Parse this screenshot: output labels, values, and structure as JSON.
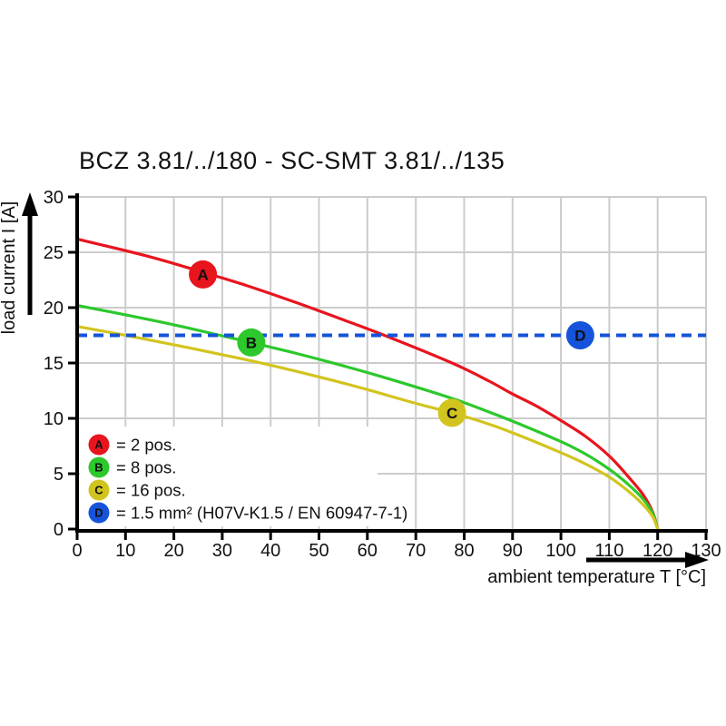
{
  "chart_data": {
    "type": "line",
    "title": "BCZ 3.81/../180 - SC-SMT 3.81/../135",
    "xlabel": "ambient temperature T [°C]",
    "ylabel": "load current I [A]",
    "xlim": [
      0,
      130
    ],
    "ylim": [
      0,
      30
    ],
    "x_ticks": [
      0,
      10,
      20,
      30,
      40,
      50,
      60,
      70,
      80,
      90,
      100,
      110,
      120,
      130
    ],
    "y_ticks": [
      0,
      5,
      10,
      15,
      20,
      25,
      30
    ],
    "grid": true,
    "legend_position": "bottom-left",
    "colors": {
      "red": "#e8141e",
      "green": "#2cc82c",
      "yellow": "#d2c41e",
      "blue": "#1553db",
      "grid": "#cccccc",
      "axis": "#000000",
      "marker_letter": "#ffffff"
    },
    "series": [
      {
        "letter": "A",
        "name": "2 pos.",
        "color_key": "red",
        "line_style": "solid",
        "marker_at": [
          26,
          23
        ],
        "points": [
          [
            0,
            26.2
          ],
          [
            15,
            24.6
          ],
          [
            26,
            23.2
          ],
          [
            35,
            22.0
          ],
          [
            45,
            20.5
          ],
          [
            55,
            18.9
          ],
          [
            63.5,
            17.5
          ],
          [
            77.5,
            15.0
          ],
          [
            85,
            13.4
          ],
          [
            90,
            12.2
          ],
          [
            95,
            11.1
          ],
          [
            100,
            9.8
          ],
          [
            105,
            8.4
          ],
          [
            110,
            6.6
          ],
          [
            114,
            4.7
          ],
          [
            117,
            3.1
          ],
          [
            119,
            1.5
          ],
          [
            120,
            0
          ]
        ]
      },
      {
        "letter": "B",
        "name": "8 pos.",
        "color_key": "green",
        "line_style": "solid",
        "marker_at": [
          36,
          16.85
        ],
        "points": [
          [
            0,
            20.2
          ],
          [
            10,
            19.35
          ],
          [
            20,
            18.45
          ],
          [
            29.5,
            17.5
          ],
          [
            36,
            16.85
          ],
          [
            45,
            15.9
          ],
          [
            55,
            14.75
          ],
          [
            65,
            13.5
          ],
          [
            77.5,
            11.8
          ],
          [
            85,
            10.6
          ],
          [
            90,
            9.75
          ],
          [
            100,
            7.9
          ],
          [
            105,
            6.8
          ],
          [
            110,
            5.4
          ],
          [
            114,
            4.0
          ],
          [
            117,
            2.7
          ],
          [
            119,
            1.4
          ],
          [
            120,
            0
          ]
        ]
      },
      {
        "letter": "C",
        "name": "16 pos.",
        "color_key": "yellow",
        "line_style": "solid",
        "marker_at": [
          77.5,
          10.5
        ],
        "points": [
          [
            0,
            18.3
          ],
          [
            10,
            17.5
          ],
          [
            20,
            16.65
          ],
          [
            30,
            15.75
          ],
          [
            40,
            14.8
          ],
          [
            50,
            13.75
          ],
          [
            60,
            12.6
          ],
          [
            70,
            11.35
          ],
          [
            77.5,
            10.5
          ],
          [
            85,
            9.5
          ],
          [
            90,
            8.7
          ],
          [
            100,
            6.9
          ],
          [
            105,
            5.9
          ],
          [
            110,
            4.7
          ],
          [
            114,
            3.4
          ],
          [
            117,
            2.2
          ],
          [
            119,
            1.1
          ],
          [
            120,
            0
          ]
        ]
      },
      {
        "letter": "D",
        "name": "1.5 mm² (H07V-K1.5 / EN 60947-7-1)",
        "color_key": "blue",
        "line_style": "dashed",
        "marker_at": [
          104,
          17.5
        ],
        "points": [
          [
            0,
            17.5
          ],
          [
            130,
            17.5
          ]
        ]
      }
    ],
    "legend": {
      "items": [
        {
          "letter": "A",
          "label": "= 2 pos."
        },
        {
          "letter": "B",
          "label": "= 8 pos."
        },
        {
          "letter": "C",
          "label": "= 16 pos."
        },
        {
          "letter": "D",
          "label": "= 1.5 mm² (H07V-K1.5 / EN 60947-7-1)"
        }
      ]
    }
  }
}
